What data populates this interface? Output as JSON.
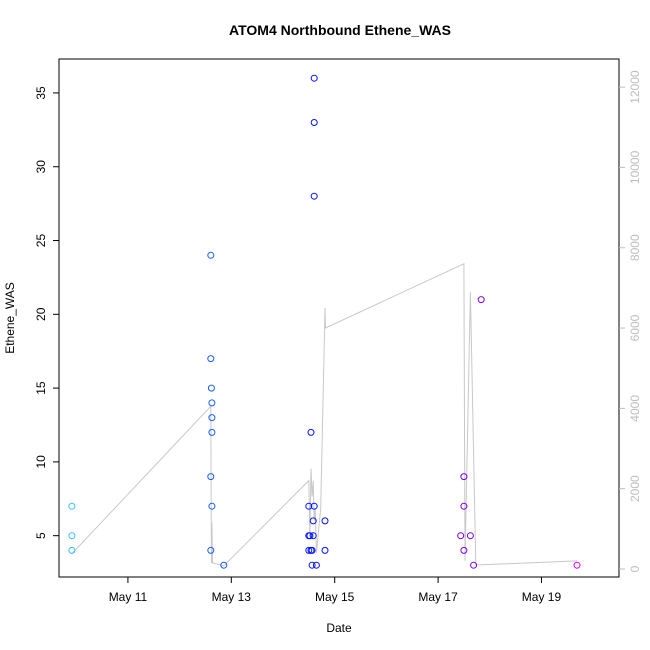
{
  "chart_data": {
    "type": "scatter",
    "title": "ATOM4 Northbound Ethene_WAS",
    "xlabel": "Date",
    "ylabel": "Ethene_WAS",
    "x_type": "date",
    "xlim": [
      "2016-05-09T16:00",
      "2016-05-20T12:00"
    ],
    "ylim": [
      2.2,
      37.3
    ],
    "y_ticks": [
      5,
      10,
      15,
      20,
      25,
      30,
      35
    ],
    "x_ticks": [
      {
        "date": "2016-05-11",
        "label": "May 11"
      },
      {
        "date": "2016-05-13",
        "label": "May 13"
      },
      {
        "date": "2016-05-15",
        "label": "May 15"
      },
      {
        "date": "2016-05-17",
        "label": "May 17"
      },
      {
        "date": "2016-05-19",
        "label": "May 19"
      }
    ],
    "y2lim": [
      -200,
      12700
    ],
    "y2_ticks": [
      0,
      2000,
      4000,
      6000,
      8000,
      10000,
      12000
    ],
    "grid": false,
    "series": [
      {
        "kind": "points",
        "color_scale": [
          "#33ccff",
          "#0000ff",
          "#ff00ff"
        ],
        "points": [
          {
            "x": "2016-05-09T22:00",
            "y": 7
          },
          {
            "x": "2016-05-09T22:00",
            "y": 5
          },
          {
            "x": "2016-05-09T22:00",
            "y": 4
          },
          {
            "x": "2016-05-12T14:30",
            "y": 24
          },
          {
            "x": "2016-05-12T14:30",
            "y": 17
          },
          {
            "x": "2016-05-12T14:45",
            "y": 15
          },
          {
            "x": "2016-05-12T15:00",
            "y": 14
          },
          {
            "x": "2016-05-12T15:00",
            "y": 13
          },
          {
            "x": "2016-05-12T15:00",
            "y": 12
          },
          {
            "x": "2016-05-12T14:30",
            "y": 9
          },
          {
            "x": "2016-05-12T15:00",
            "y": 7
          },
          {
            "x": "2016-05-12T14:30",
            "y": 4
          },
          {
            "x": "2016-05-12T20:30",
            "y": 3
          },
          {
            "x": "2016-05-14T13:00",
            "y": 12
          },
          {
            "x": "2016-05-14T12:00",
            "y": 7
          },
          {
            "x": "2016-05-14T12:00",
            "y": 5
          },
          {
            "x": "2016-05-14T12:30",
            "y": 5
          },
          {
            "x": "2016-05-14T12:00",
            "y": 4
          },
          {
            "x": "2016-05-14T13:00",
            "y": 4
          },
          {
            "x": "2016-05-14T13:30",
            "y": 4
          },
          {
            "x": "2016-05-14T14:00",
            "y": 6
          },
          {
            "x": "2016-05-14T14:00",
            "y": 5
          },
          {
            "x": "2016-05-14T13:30",
            "y": 3
          },
          {
            "x": "2016-05-14T14:30",
            "y": 36
          },
          {
            "x": "2016-05-14T14:30",
            "y": 33
          },
          {
            "x": "2016-05-14T14:30",
            "y": 28
          },
          {
            "x": "2016-05-14T14:30",
            "y": 7
          },
          {
            "x": "2016-05-14T15:30",
            "y": 3
          },
          {
            "x": "2016-05-14T19:30",
            "y": 6
          },
          {
            "x": "2016-05-14T19:30",
            "y": 4
          },
          {
            "x": "2016-05-17T10:30",
            "y": 5
          },
          {
            "x": "2016-05-17T12:00",
            "y": 9
          },
          {
            "x": "2016-05-17T12:00",
            "y": 7
          },
          {
            "x": "2016-05-17T12:00",
            "y": 4
          },
          {
            "x": "2016-05-17T15:00",
            "y": 5
          },
          {
            "x": "2016-05-17T16:30",
            "y": 3
          },
          {
            "x": "2016-05-17T20:00",
            "y": 21
          },
          {
            "x": "2016-05-19T16:30",
            "y": 3
          }
        ]
      },
      {
        "kind": "line",
        "axis": "right",
        "color": "#c8c8c8",
        "points": [
          {
            "x": "2016-05-09T22:00",
            "y": 380
          },
          {
            "x": "2016-05-12T14:30",
            "y": 4050
          },
          {
            "x": "2016-05-12T14:45",
            "y": 150
          },
          {
            "x": "2016-05-12T15:00",
            "y": 1150
          },
          {
            "x": "2016-05-12T15:15",
            "y": 150
          },
          {
            "x": "2016-05-12T20:30",
            "y": 80
          },
          {
            "x": "2016-05-14T12:00",
            "y": 2200
          },
          {
            "x": "2016-05-14T12:30",
            "y": 800
          },
          {
            "x": "2016-05-14T13:00",
            "y": 2500
          },
          {
            "x": "2016-05-14T13:30",
            "y": 1800
          },
          {
            "x": "2016-05-14T14:00",
            "y": 2200
          },
          {
            "x": "2016-05-14T14:30",
            "y": 1200
          },
          {
            "x": "2016-05-14T15:00",
            "y": 1500
          },
          {
            "x": "2016-05-14T15:30",
            "y": 400
          },
          {
            "x": "2016-05-14T17:30",
            "y": 1500
          },
          {
            "x": "2016-05-14T19:30",
            "y": 6500
          },
          {
            "x": "2016-05-14T19:45",
            "y": 6000
          },
          {
            "x": "2016-05-17T12:00",
            "y": 7600
          },
          {
            "x": "2016-05-17T12:30",
            "y": 200
          },
          {
            "x": "2016-05-17T15:00",
            "y": 6900
          },
          {
            "x": "2016-05-17T17:30",
            "y": 100
          },
          {
            "x": "2016-05-19T16:30",
            "y": 200
          }
        ]
      }
    ]
  }
}
